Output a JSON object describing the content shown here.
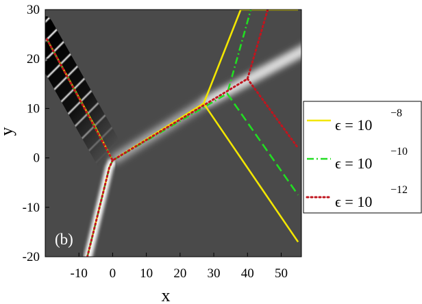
{
  "chart_data": {
    "type": "line",
    "panel_label": "(b)",
    "xlabel": "x",
    "ylabel": "y",
    "xlim": [
      -20,
      56
    ],
    "ylim": [
      -20,
      30
    ],
    "xticks": [
      {
        "value": -10,
        "label": "-10"
      },
      {
        "value": 0,
        "label": "0"
      },
      {
        "value": 10,
        "label": "10"
      },
      {
        "value": 20,
        "label": "20"
      },
      {
        "value": 30,
        "label": "30"
      },
      {
        "value": 40,
        "label": "40"
      },
      {
        "value": 50,
        "label": "50"
      }
    ],
    "yticks": [
      {
        "value": -20,
        "label": "-20"
      },
      {
        "value": -10,
        "label": "-10"
      },
      {
        "value": 0,
        "label": "0"
      },
      {
        "value": 10,
        "label": "10"
      },
      {
        "value": 20,
        "label": "20"
      },
      {
        "value": 30,
        "label": "30"
      }
    ],
    "background_color": "#4a4a4a",
    "legend_position": "right",
    "legend": [
      {
        "prefix": "ϵ = 10",
        "exponent": "−8",
        "color": "#f2e600",
        "dash": "solid"
      },
      {
        "prefix": "ϵ = 10",
        "exponent": "−10",
        "color": "#22dd22",
        "dash": "dashdot"
      },
      {
        "prefix": "ϵ = 10",
        "exponent": "−12",
        "color": "#c0151e",
        "dash": "dot"
      }
    ],
    "series": [
      {
        "x": [
          -19.5,
          -5,
          0,
          27,
          38,
          55
        ],
        "y": [
          24,
          6,
          -0.5,
          11,
          30,
          30
        ],
        "color": "#f2e600",
        "dash": "solid"
      },
      {
        "x": [
          0,
          27,
          55
        ],
        "y": [
          -0.5,
          11,
          -17
        ],
        "color": "#f2e600",
        "dash": "solid"
      },
      {
        "x": [
          -7.5,
          -1,
          0
        ],
        "y": [
          -20,
          -2,
          -0.5
        ],
        "color": "#f2e600",
        "dash": "solid"
      },
      {
        "x": [
          -19.5,
          0,
          34,
          41
        ],
        "y": [
          24,
          -0.5,
          13,
          30
        ],
        "color": "#22dd22",
        "dash": "dashdot"
      },
      {
        "x": [
          34,
          55
        ],
        "y": [
          13,
          -7.5
        ],
        "color": "#22dd22",
        "dash": "dashed"
      },
      {
        "x": [
          -7.5,
          -1,
          0
        ],
        "y": [
          -20,
          -2,
          -0.5
        ],
        "color": "#22dd22",
        "dash": "dashdot"
      },
      {
        "x": [
          -19.5,
          0,
          40,
          46
        ],
        "y": [
          24,
          -0.5,
          16,
          30
        ],
        "color": "#c0151e",
        "dash": "dot"
      },
      {
        "x": [
          40,
          55
        ],
        "y": [
          16,
          2
        ],
        "color": "#c0151e",
        "dash": "dot"
      },
      {
        "x": [
          -7.5,
          -1,
          0
        ],
        "y": [
          -20,
          -2,
          -0.5
        ],
        "color": "#c0151e",
        "dash": "dot"
      }
    ]
  }
}
